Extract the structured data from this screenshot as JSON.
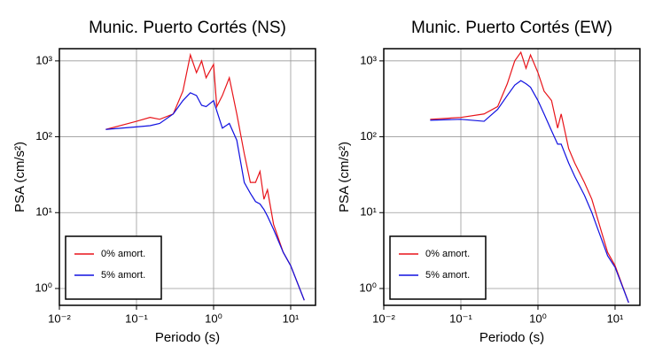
{
  "chart_data": [
    {
      "type": "line",
      "title": "Munic. Puerto Cortés (NS)",
      "x_label": "Periodo (s)",
      "y_label": "PSA (cm/s²)",
      "log_x": true,
      "log_y": true,
      "grid": true,
      "legend": "lower left",
      "xlim": [
        0.01,
        21
      ],
      "ylim": [
        0.6,
        1450
      ],
      "xticks": [
        {
          "value": 0.01,
          "label": "10⁻²"
        },
        {
          "value": 0.1,
          "label": "10⁻¹"
        },
        {
          "value": 1,
          "label": "10⁰"
        },
        {
          "value": 10,
          "label": "10¹"
        }
      ],
      "yticks": [
        {
          "value": 1,
          "label": "10⁰"
        },
        {
          "value": 10,
          "label": "10¹"
        },
        {
          "value": 100,
          "label": "10²"
        },
        {
          "value": 1000,
          "label": "10³"
        }
      ],
      "x": [
        0.04,
        0.1,
        0.15,
        0.2,
        0.3,
        0.4,
        0.5,
        0.6,
        0.7,
        0.8,
        1.0,
        1.1,
        1.3,
        1.6,
        2,
        2.5,
        3,
        3.5,
        4,
        4.5,
        5,
        6,
        8,
        10,
        15
      ],
      "series": [
        {
          "name": "0% amort.",
          "color": "#e8141a",
          "values": [
            125,
            160,
            180,
            170,
            200,
            400,
            1200,
            700,
            1000,
            600,
            900,
            250,
            350,
            600,
            200,
            60,
            25,
            25,
            35,
            15,
            20,
            7,
            3,
            2,
            0.7
          ]
        },
        {
          "name": "5% amort.",
          "color": "#1010e0",
          "values": [
            125,
            135,
            140,
            150,
            200,
            300,
            380,
            350,
            260,
            250,
            300,
            220,
            130,
            150,
            90,
            25,
            18,
            14,
            13,
            11,
            9,
            6,
            3,
            2,
            0.7
          ]
        }
      ]
    },
    {
      "type": "line",
      "title": "Munic. Puerto Cortés (EW)",
      "x_label": "Periodo (s)",
      "y_label": "PSA (cm/s²)",
      "log_x": true,
      "log_y": true,
      "grid": true,
      "legend": "lower left",
      "xlim": [
        0.01,
        21
      ],
      "ylim": [
        0.6,
        1450
      ],
      "xticks": [
        {
          "value": 0.01,
          "label": "10⁻²"
        },
        {
          "value": 0.1,
          "label": "10⁻¹"
        },
        {
          "value": 1,
          "label": "10⁰"
        },
        {
          "value": 10,
          "label": "10¹"
        }
      ],
      "yticks": [
        {
          "value": 1,
          "label": "10⁰"
        },
        {
          "value": 10,
          "label": "10¹"
        },
        {
          "value": 100,
          "label": "10²"
        },
        {
          "value": 1000,
          "label": "10³"
        }
      ],
      "x": [
        0.04,
        0.1,
        0.2,
        0.3,
        0.4,
        0.5,
        0.6,
        0.7,
        0.8,
        1.0,
        1.2,
        1.5,
        1.8,
        2,
        2.5,
        3,
        4,
        5,
        6,
        8,
        10,
        15
      ],
      "series": [
        {
          "name": "0% amort.",
          "color": "#e8141a",
          "values": [
            170,
            180,
            200,
            250,
            500,
            1000,
            1300,
            800,
            1200,
            700,
            400,
            300,
            130,
            200,
            70,
            45,
            25,
            15,
            8,
            3,
            2,
            0.65
          ]
        },
        {
          "name": "5% amort.",
          "color": "#1010e0",
          "values": [
            165,
            170,
            160,
            230,
            350,
            480,
            550,
            500,
            450,
            300,
            200,
            120,
            80,
            80,
            45,
            30,
            17,
            10,
            6,
            2.7,
            1.9,
            0.65
          ]
        }
      ]
    }
  ]
}
